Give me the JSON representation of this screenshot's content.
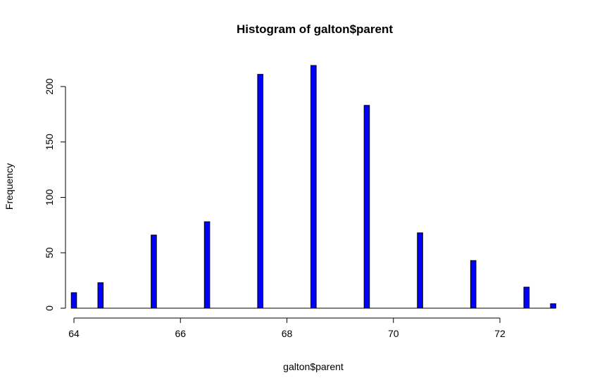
{
  "chart_data": {
    "type": "bar",
    "title": "Histogram of galton$parent",
    "xlabel": "galton$parent",
    "ylabel": "Frequency",
    "xlim": [
      64,
      73
    ],
    "ylim": [
      0,
      220
    ],
    "x_ticks": [
      64,
      66,
      68,
      70,
      72
    ],
    "y_ticks": [
      0,
      50,
      100,
      150,
      200
    ],
    "bar_color": "#0000ff",
    "bar_border_color": "#000000",
    "bar_width": 0.1,
    "bars": [
      {
        "x": 64.0,
        "value": 14
      },
      {
        "x": 64.5,
        "value": 23
      },
      {
        "x": 65.5,
        "value": 66
      },
      {
        "x": 66.5,
        "value": 78
      },
      {
        "x": 67.5,
        "value": 211
      },
      {
        "x": 68.5,
        "value": 219
      },
      {
        "x": 69.5,
        "value": 183
      },
      {
        "x": 70.5,
        "value": 68
      },
      {
        "x": 71.5,
        "value": 43
      },
      {
        "x": 72.5,
        "value": 19
      },
      {
        "x": 73.0,
        "value": 4
      }
    ],
    "grid": false,
    "legend": "none"
  }
}
